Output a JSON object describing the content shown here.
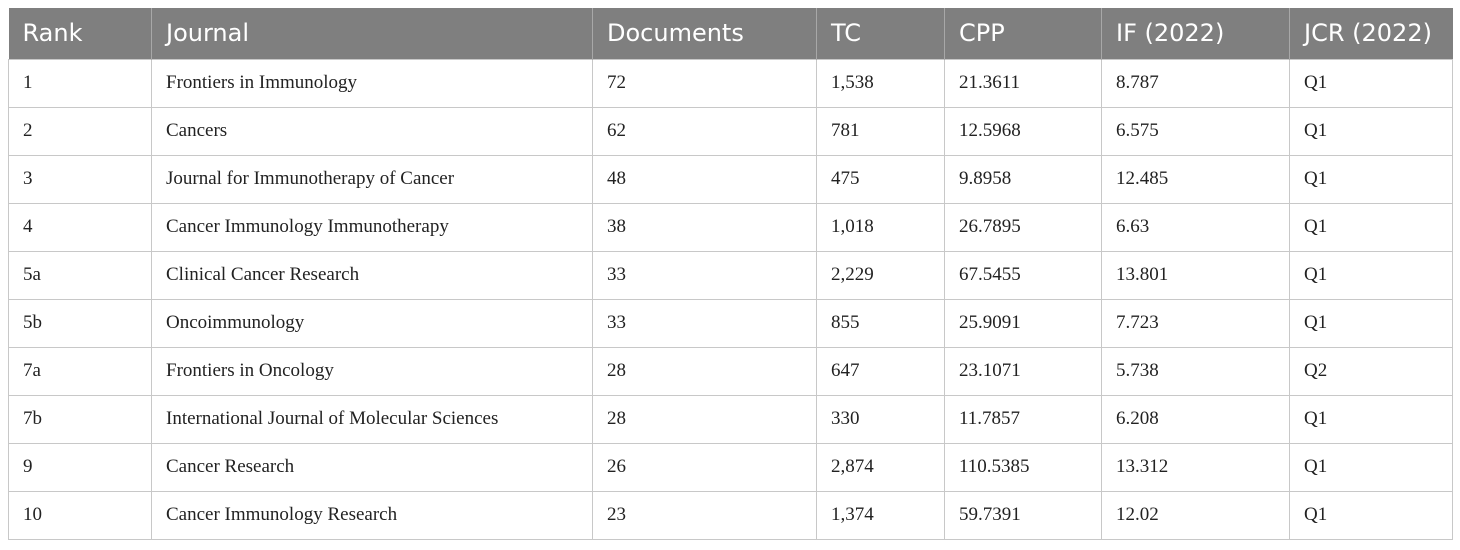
{
  "table": {
    "headers": [
      "Rank",
      "Journal",
      "Documents",
      "TC",
      "CPP",
      "IF (2022)",
      "JCR (2022)"
    ],
    "rows": [
      [
        "1",
        "Frontiers in Immunology",
        "72",
        "1,538",
        "21.3611",
        "8.787",
        "Q1"
      ],
      [
        "2",
        "Cancers",
        "62",
        "781",
        "12.5968",
        "6.575",
        "Q1"
      ],
      [
        "3",
        "Journal for Immunotherapy of Cancer",
        "48",
        "475",
        "9.8958",
        "12.485",
        "Q1"
      ],
      [
        "4",
        "Cancer Immunology Immunotherapy",
        "38",
        "1,018",
        "26.7895",
        "6.63",
        "Q1"
      ],
      [
        "5a",
        "Clinical Cancer Research",
        "33",
        "2,229",
        "67.5455",
        "13.801",
        "Q1"
      ],
      [
        "5b",
        "Oncoimmunology",
        "33",
        "855",
        "25.9091",
        "7.723",
        "Q1"
      ],
      [
        "7a",
        "Frontiers in Oncology",
        "28",
        "647",
        "23.1071",
        "5.738",
        "Q2"
      ],
      [
        "7b",
        "International Journal of Molecular Sciences",
        "28",
        "330",
        "11.7857",
        "6.208",
        "Q1"
      ],
      [
        "9",
        "Cancer Research",
        "26",
        "2,874",
        "110.5385",
        "13.312",
        "Q1"
      ],
      [
        "10",
        "Cancer Immunology Research",
        "23",
        "1,374",
        "59.7391",
        "12.02",
        "Q1"
      ]
    ]
  }
}
